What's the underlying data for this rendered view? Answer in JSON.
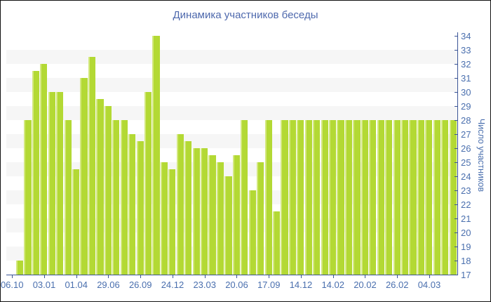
{
  "title": "Динамика участников беседы",
  "colors": {
    "title": "#4e69ad",
    "axis_line": "#3a5496",
    "tick_label": "#4a6fae",
    "bar_fill": "#b3d934",
    "bar_highlight": "#d3e87e",
    "stripe_gray": "#f6f6f6",
    "background": "#ffffff"
  },
  "chart_data": {
    "type": "bar",
    "title": "Динамика участников беседы",
    "xlabel": "",
    "ylabel": "Число участников",
    "ylim": [
      17,
      34
    ],
    "yticks": [
      17,
      18,
      19,
      20,
      21,
      22,
      23,
      24,
      25,
      26,
      27,
      28,
      29,
      30,
      31,
      32,
      33,
      34
    ],
    "grid": "horizontal-stripes",
    "legend": "none",
    "x_tick_labels": [
      "06.10",
      "03.01",
      "01.04",
      "29.06",
      "26.09",
      "24.12",
      "23.03",
      "20.06",
      "17.09",
      "14.12",
      "14.02",
      "20.02",
      "26.02",
      "04.03"
    ],
    "x_tick_every_n_bars": 4,
    "values": [
      17,
      18,
      28,
      31.5,
      32,
      30,
      30,
      28,
      24.5,
      31,
      32.5,
      29.5,
      29,
      28,
      28,
      27,
      26.5,
      30,
      34,
      25,
      24.5,
      27,
      26.5,
      26,
      26,
      25.5,
      25,
      24,
      25.5,
      28,
      23,
      25,
      28,
      21.5,
      28,
      28,
      28,
      28,
      28,
      28,
      28,
      28,
      28,
      28,
      28,
      28,
      28,
      28,
      28,
      28,
      28,
      28,
      28,
      28,
      28,
      28
    ]
  }
}
